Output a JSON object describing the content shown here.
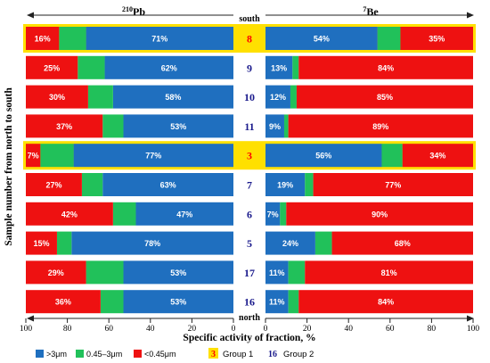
{
  "chart_data": {
    "type": "bar",
    "subtype": "stacked-horizontal-diverging",
    "panels": [
      {
        "name": "210",
        "name_suffix": "Pb",
        "direction": "right-to-left"
      },
      {
        "name": "7",
        "name_suffix": "Be",
        "direction": "left-to-right"
      }
    ],
    "north_label": "north",
    "south_label": "south",
    "ylabel": "Sample number from north to south",
    "xlabel": "Specific activity of fraction, %",
    "xlim": [
      0,
      100
    ],
    "x_ticks": [
      "100",
      "80",
      "60",
      "40",
      "20",
      "0",
      "0",
      "20",
      "40",
      "60",
      "80",
      "100"
    ],
    "fraction_names": [
      ">3μm",
      "0.45–3μm",
      "<0.45μm"
    ],
    "colors": {
      ">3μm": "#1f6fbf",
      "0.45–3μm": "#21c15a",
      "<0.45μm": "#ee1111",
      "group1": "#ffe000",
      "group1_text": "#ff0000",
      "group2_text": "#1a1a8c"
    },
    "samples": [
      {
        "id": "8",
        "group": 1,
        "pb": {
          "gt3": 71,
          "mid": 13,
          "lt045": 16
        },
        "be": {
          "gt3": 54,
          "mid": 11,
          "lt045": 35
        },
        "pb_labels": [
          "16%",
          "71%"
        ],
        "be_labels": [
          "54%",
          "35%"
        ]
      },
      {
        "id": "9",
        "group": 2,
        "pb": {
          "gt3": 62,
          "mid": 13,
          "lt045": 25
        },
        "be": {
          "gt3": 13,
          "mid": 3,
          "lt045": 84
        },
        "pb_labels": [
          "25%",
          "62%"
        ],
        "be_labels": [
          "13%",
          "84%"
        ]
      },
      {
        "id": "10",
        "group": 2,
        "pb": {
          "gt3": 58,
          "mid": 12,
          "lt045": 30
        },
        "be": {
          "gt3": 12,
          "mid": 3,
          "lt045": 85
        },
        "pb_labels": [
          "30%",
          "58%"
        ],
        "be_labels": [
          "12%",
          "85%"
        ]
      },
      {
        "id": "11",
        "group": 2,
        "pb": {
          "gt3": 53,
          "mid": 10,
          "lt045": 37
        },
        "be": {
          "gt3": 9,
          "mid": 2,
          "lt045": 89
        },
        "pb_labels": [
          "37%",
          "53%"
        ],
        "be_labels": [
          "9%",
          "89%"
        ]
      },
      {
        "id": "3",
        "group": 1,
        "pb": {
          "gt3": 77,
          "mid": 16,
          "lt045": 7
        },
        "be": {
          "gt3": 56,
          "mid": 10,
          "lt045": 34
        },
        "pb_labels": [
          "7%",
          "77%"
        ],
        "be_labels": [
          "56%",
          "34%"
        ]
      },
      {
        "id": "7",
        "group": 2,
        "pb": {
          "gt3": 63,
          "mid": 10,
          "lt045": 27
        },
        "be": {
          "gt3": 19,
          "mid": 4,
          "lt045": 77
        },
        "pb_labels": [
          "27%",
          "63%"
        ],
        "be_labels": [
          "19%",
          "77%"
        ]
      },
      {
        "id": "6",
        "group": 2,
        "pb": {
          "gt3": 47,
          "mid": 11,
          "lt045": 42
        },
        "be": {
          "gt3": 7,
          "mid": 3,
          "lt045": 90
        },
        "pb_labels": [
          "42%",
          "47%"
        ],
        "be_labels": [
          "7%",
          "90%"
        ]
      },
      {
        "id": "5",
        "group": 2,
        "pb": {
          "gt3": 78,
          "mid": 7,
          "lt045": 15
        },
        "be": {
          "gt3": 24,
          "mid": 8,
          "lt045": 68
        },
        "pb_labels": [
          "15%",
          "78%"
        ],
        "be_labels": [
          "24%",
          "68%"
        ]
      },
      {
        "id": "17",
        "group": 2,
        "pb": {
          "gt3": 53,
          "mid": 18,
          "lt045": 29
        },
        "be": {
          "gt3": 11,
          "mid": 8,
          "lt045": 81
        },
        "pb_labels": [
          "29%",
          "53%"
        ],
        "be_labels": [
          "11%",
          "81%"
        ]
      },
      {
        "id": "16",
        "group": 2,
        "pb": {
          "gt3": 53,
          "mid": 11,
          "lt045": 36
        },
        "be": {
          "gt3": 11,
          "mid": 5,
          "lt045": 84
        },
        "pb_labels": [
          "36%",
          "53%"
        ],
        "be_labels": [
          "11%",
          "84%"
        ]
      }
    ],
    "legend": {
      "placement": "bottom",
      "items": [
        ">3μm",
        "0.45–3μm",
        "<0.45μm"
      ],
      "group1_marker": "3",
      "group1_label": "Group 1",
      "group2_marker": "16",
      "group2_label": "Group 2"
    }
  }
}
